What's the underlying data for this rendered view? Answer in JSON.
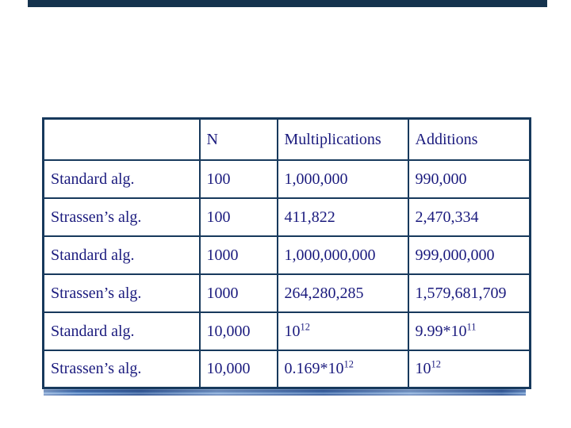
{
  "theme": {
    "slide_bg": "#ffffff",
    "accent_dark": "#15334e",
    "border_navy": "#17395c",
    "text_navy": "#1b1b7e",
    "rule_light": "#7fa5d4",
    "rule_dark": "#2f5392"
  },
  "table": {
    "header": [
      "",
      "N",
      "Multiplications",
      "Additions"
    ],
    "rows": [
      {
        "algorithm": "Standard alg.",
        "n": "100",
        "multiplications": [
          {
            "t": "1,000,000"
          }
        ],
        "additions": [
          {
            "t": "990,000"
          }
        ]
      },
      {
        "algorithm": "Strassen’s alg.",
        "n": "100",
        "multiplications": [
          {
            "t": "411,822"
          }
        ],
        "additions": [
          {
            "t": "2,470,334"
          }
        ]
      },
      {
        "algorithm": "Standard alg.",
        "n": "1000",
        "multiplications": [
          {
            "t": "1,000,000,000"
          }
        ],
        "additions": [
          {
            "t": "999,000,000"
          }
        ]
      },
      {
        "algorithm": "Strassen’s alg.",
        "n": "1000",
        "multiplications": [
          {
            "t": "264,280,285"
          }
        ],
        "additions": [
          {
            "t": "1,579,681,709"
          }
        ]
      },
      {
        "algorithm": "Standard alg.",
        "n": "10,000",
        "multiplications": [
          {
            "t": "10"
          },
          {
            "sup": "12"
          }
        ],
        "additions": [
          {
            "t": "9.99*10"
          },
          {
            "sup": "11"
          }
        ]
      },
      {
        "algorithm": "Strassen’s alg.",
        "n": "10,000",
        "multiplications": [
          {
            "t": "0.169*10"
          },
          {
            "sup": "12"
          }
        ],
        "additions": [
          {
            "t": "10"
          },
          {
            "sup": "12"
          }
        ]
      }
    ]
  }
}
